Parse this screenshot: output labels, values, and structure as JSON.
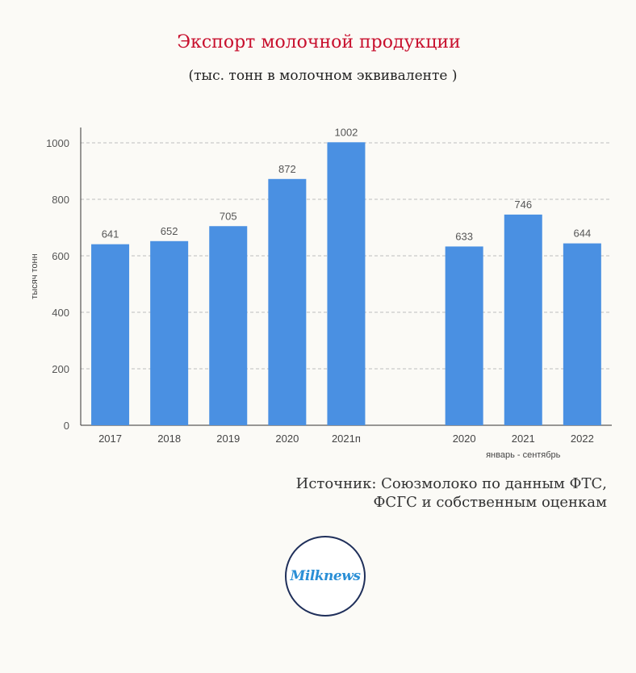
{
  "title": "Экспорт молочной продукции",
  "subtitle": "(тыс. тонн в молочном эквиваленте )",
  "source": {
    "line1": "Источник: Союзмолоко по данным ФТС,",
    "line2": "ФСГС и собственным оценкам"
  },
  "logo": {
    "text": "Milknews"
  },
  "colors": {
    "bar": "#4a90e2",
    "title": "#c8102e",
    "grid": "#bdbdbd"
  },
  "chart_data": {
    "type": "bar",
    "title": "Экспорт молочной продукции",
    "ylabel": "тысяч тонн",
    "xlabel": "",
    "ylim": [
      0,
      1000
    ],
    "yticks": [
      0,
      200,
      400,
      600,
      800,
      1000
    ],
    "grid": true,
    "categories": [
      "2017",
      "2018",
      "2019",
      "2020",
      "2021п",
      "",
      "2020",
      "2021",
      "2022"
    ],
    "values": [
      641,
      652,
      705,
      872,
      1002,
      null,
      633,
      746,
      644
    ],
    "group_label": "январь - сентябрь"
  }
}
